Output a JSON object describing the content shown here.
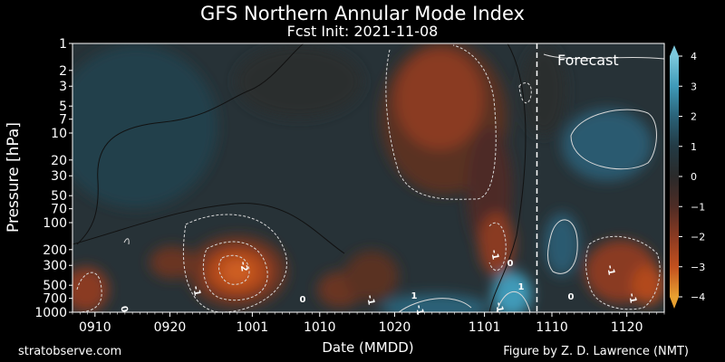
{
  "chart_data": {
    "type": "heatmap",
    "title": "GFS Northern Annular Mode Index",
    "subtitle": "Fcst Init: 2021-11-08",
    "xlabel": "Date (MMDD)",
    "ylabel": "Pressure [hPa]",
    "x_ticks": [
      "0910",
      "0920",
      "1001",
      "1010",
      "1020",
      "1101",
      "1110",
      "1120"
    ],
    "x_range": [
      "2021-09-07",
      "2021-11-25"
    ],
    "forecast_start": "2021-11-08",
    "y_ticks": [
      1,
      2,
      3,
      5,
      7,
      10,
      20,
      30,
      50,
      70,
      100,
      200,
      300,
      500,
      700,
      1000
    ],
    "y_scale": "log",
    "y_range": [
      1000,
      1
    ],
    "colorbar_ticks": [
      4,
      3,
      2,
      1,
      0,
      -1,
      -2,
      -3,
      -4
    ],
    "colorbar_range": [
      -4,
      4
    ],
    "colorbar_colors": [
      "#e8a030",
      "#c2501e",
      "#8a3a22",
      "#4e2c25",
      "#2a2a2a",
      "#233a44",
      "#2a6278",
      "#3f9ab8",
      "#7cc8dc"
    ],
    "annotations": [
      {
        "text": "Forecast"
      },
      {
        "text": "-2"
      },
      {
        "text": "-1"
      },
      {
        "text": "-1"
      },
      {
        "text": "-1"
      },
      {
        "text": "-1"
      },
      {
        "text": "-1"
      },
      {
        "text": "-1"
      },
      {
        "text": "-1"
      },
      {
        "text": "0"
      },
      {
        "text": "0"
      },
      {
        "text": "0"
      },
      {
        "text": "0"
      },
      {
        "text": "1"
      },
      {
        "text": "1"
      }
    ]
  },
  "credits": {
    "left": "stratobserve.com",
    "right": "Figure by Z. D. Lawrence (NMT)"
  }
}
